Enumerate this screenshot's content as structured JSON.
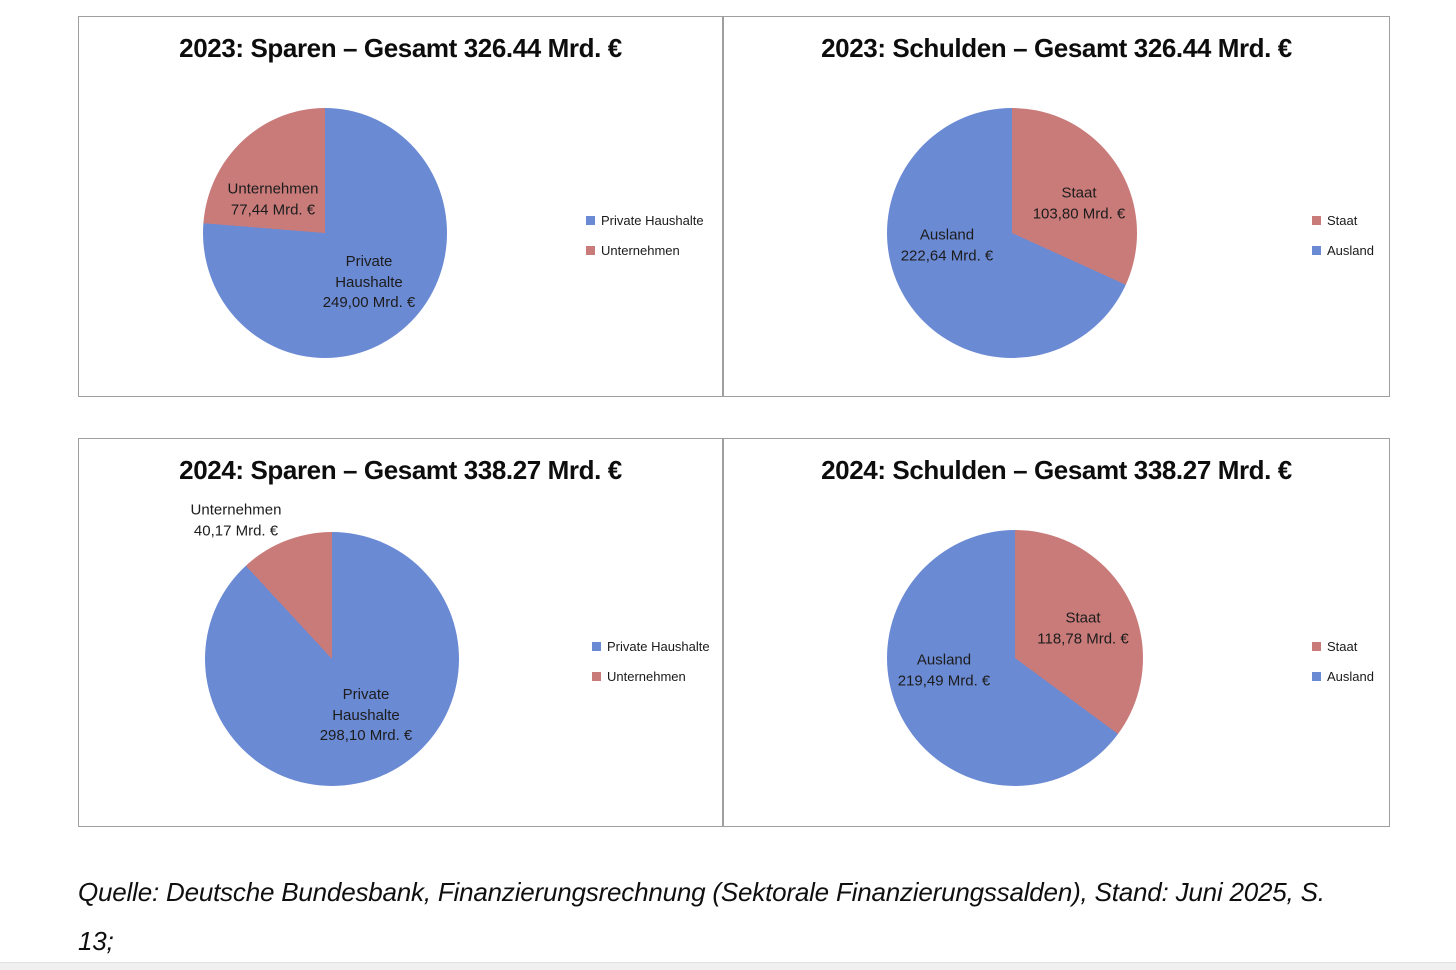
{
  "chart_data": [
    {
      "type": "pie",
      "title": "2023: Sparen – Gesamt 326.44 Mrd. €",
      "total": 326.44,
      "unit": "Mrd. €",
      "slices": [
        {
          "label": "Private Haushalte",
          "value": 249.0,
          "display_value": "249,00 Mrd. €",
          "color": "#6B8AD4",
          "label_placement": "inside"
        },
        {
          "label": "Unternehmen",
          "value": 77.44,
          "display_value": "77,44 Mrd. €",
          "color": "#C97B7A",
          "label_placement": "inside"
        }
      ],
      "legend": {
        "position": "right",
        "entries": [
          "Private Haushalte",
          "Unternehmen"
        ]
      }
    },
    {
      "type": "pie",
      "title": "2023: Schulden – Gesamt 326.44 Mrd. €",
      "total": 326.44,
      "unit": "Mrd. €",
      "slices": [
        {
          "label": "Staat",
          "value": 103.8,
          "display_value": "103,80 Mrd. €",
          "color": "#C97B7A",
          "label_placement": "inside"
        },
        {
          "label": "Ausland",
          "value": 222.64,
          "display_value": "222,64 Mrd. €",
          "color": "#6B8AD4",
          "label_placement": "inside"
        }
      ],
      "legend": {
        "position": "right",
        "entries": [
          "Staat",
          "Ausland"
        ]
      }
    },
    {
      "type": "pie",
      "title": "2024: Sparen – Gesamt 338.27 Mrd. €",
      "total": 338.27,
      "unit": "Mrd. €",
      "slices": [
        {
          "label": "Private Haushalte",
          "value": 298.1,
          "display_value": "298,10 Mrd. €",
          "color": "#6B8AD4",
          "label_placement": "inside"
        },
        {
          "label": "Unternehmen",
          "value": 40.17,
          "display_value": "40,17 Mrd. €",
          "color": "#C97B7A",
          "label_placement": "outside"
        }
      ],
      "legend": {
        "position": "right",
        "entries": [
          "Private Haushalte",
          "Unternehmen"
        ]
      }
    },
    {
      "type": "pie",
      "title": "2024: Schulden – Gesamt 338.27 Mrd. €",
      "total": 338.27,
      "unit": "Mrd. €",
      "slices": [
        {
          "label": "Staat",
          "value": 118.78,
          "display_value": "118,78 Mrd. €",
          "color": "#C97B7A",
          "label_placement": "inside"
        },
        {
          "label": "Ausland",
          "value": 219.49,
          "display_value": "219,49 Mrd. €",
          "color": "#6B8AD4",
          "label_placement": "inside"
        }
      ],
      "legend": {
        "position": "right",
        "entries": [
          "Staat",
          "Ausland"
        ]
      }
    }
  ],
  "footer": {
    "source_line1": "Quelle: Deutsche Bundesbank, Finanzierungsrechnung (Sektorale Finanzierungssalden), Stand: Juni 2025, S.",
    "source_line2": "13;"
  }
}
